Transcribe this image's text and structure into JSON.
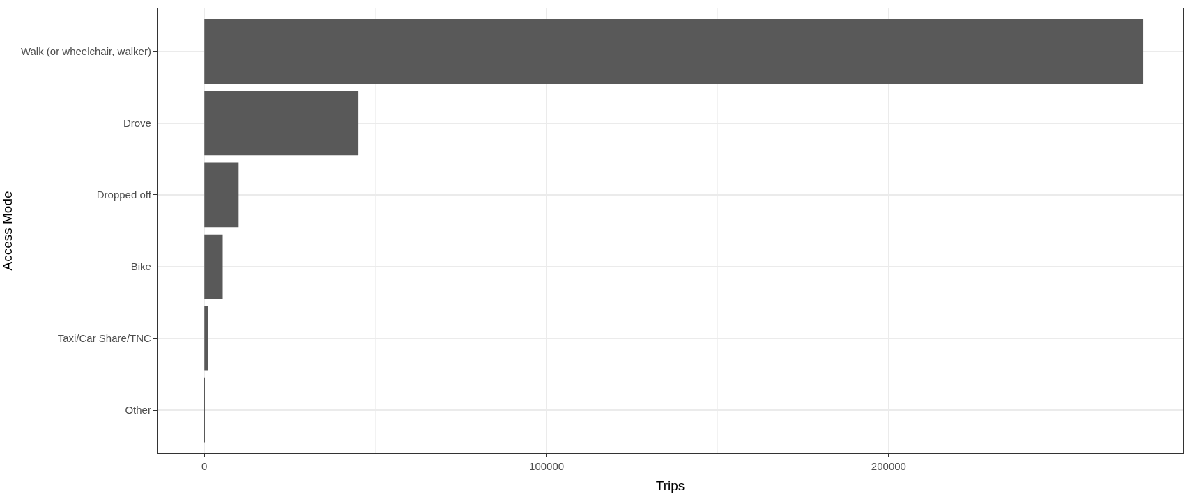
{
  "chart_data": {
    "type": "bar",
    "orientation": "horizontal",
    "xlabel": "Trips",
    "ylabel": "Access Mode",
    "categories": [
      "Walk (or wheelchair, walker)",
      "Drove",
      "Dropped off",
      "Bike",
      "Taxi/Car Share/TNC",
      "Other"
    ],
    "values": [
      274400,
      45000,
      10000,
      5350,
      1050,
      100
    ],
    "color": "#595959",
    "xlim": [
      -13700,
      286000
    ],
    "xticks": [
      0,
      100000,
      200000
    ],
    "grid": true,
    "legend": false
  }
}
